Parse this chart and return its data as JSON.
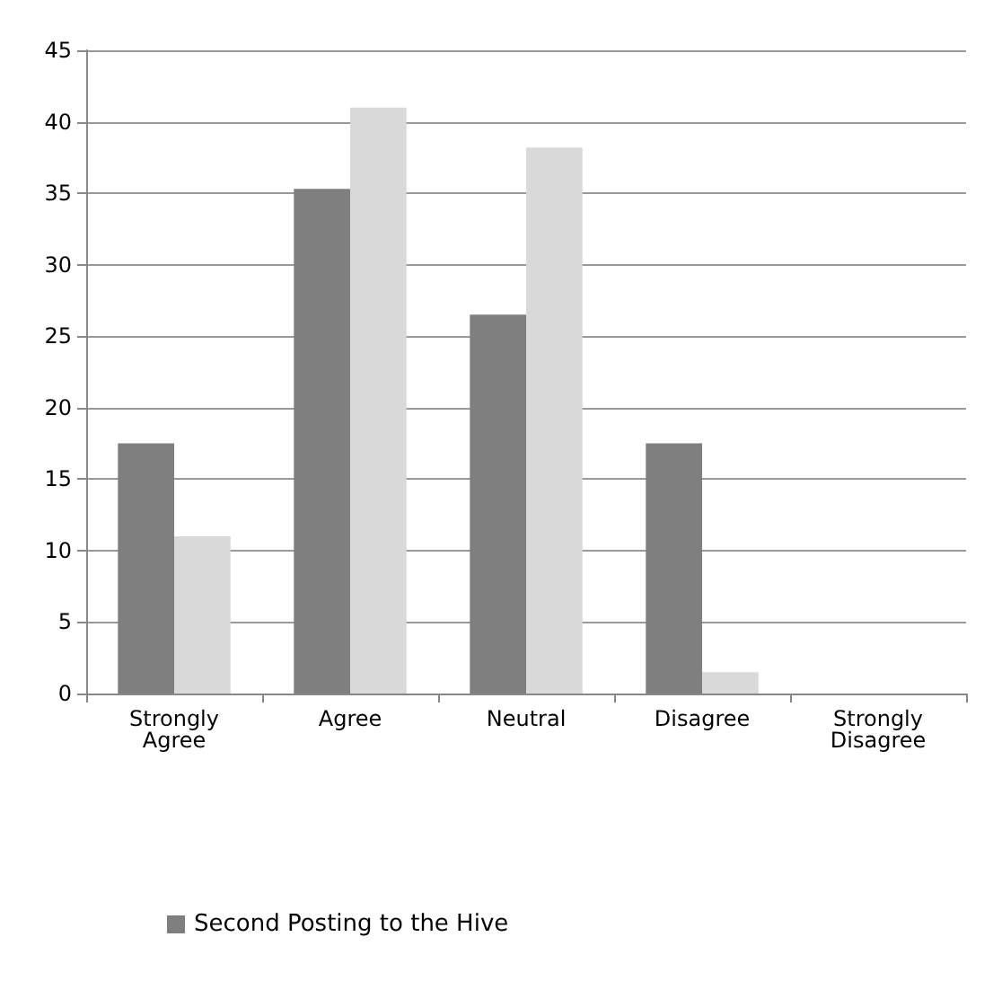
{
  "chart_data": {
    "type": "bar",
    "categories": [
      "Strongly\nAgree",
      "Agree",
      "Neutral",
      "Disagree",
      "Strongly\nDisagree"
    ],
    "series": [
      {
        "name": "Second Posting to the Hive",
        "color": "#7f7f7f",
        "values": [
          17.5,
          35.3,
          26.5,
          17.5,
          0
        ]
      },
      {
        "color": "#d9d9d9",
        "values": [
          11,
          41,
          38.2,
          1.5,
          0
        ]
      }
    ],
    "ylim": [
      0,
      45
    ],
    "yticks": [
      0,
      5,
      10,
      15,
      20,
      25,
      30,
      35,
      40,
      45
    ],
    "grid": "y",
    "legend": "bottom"
  }
}
